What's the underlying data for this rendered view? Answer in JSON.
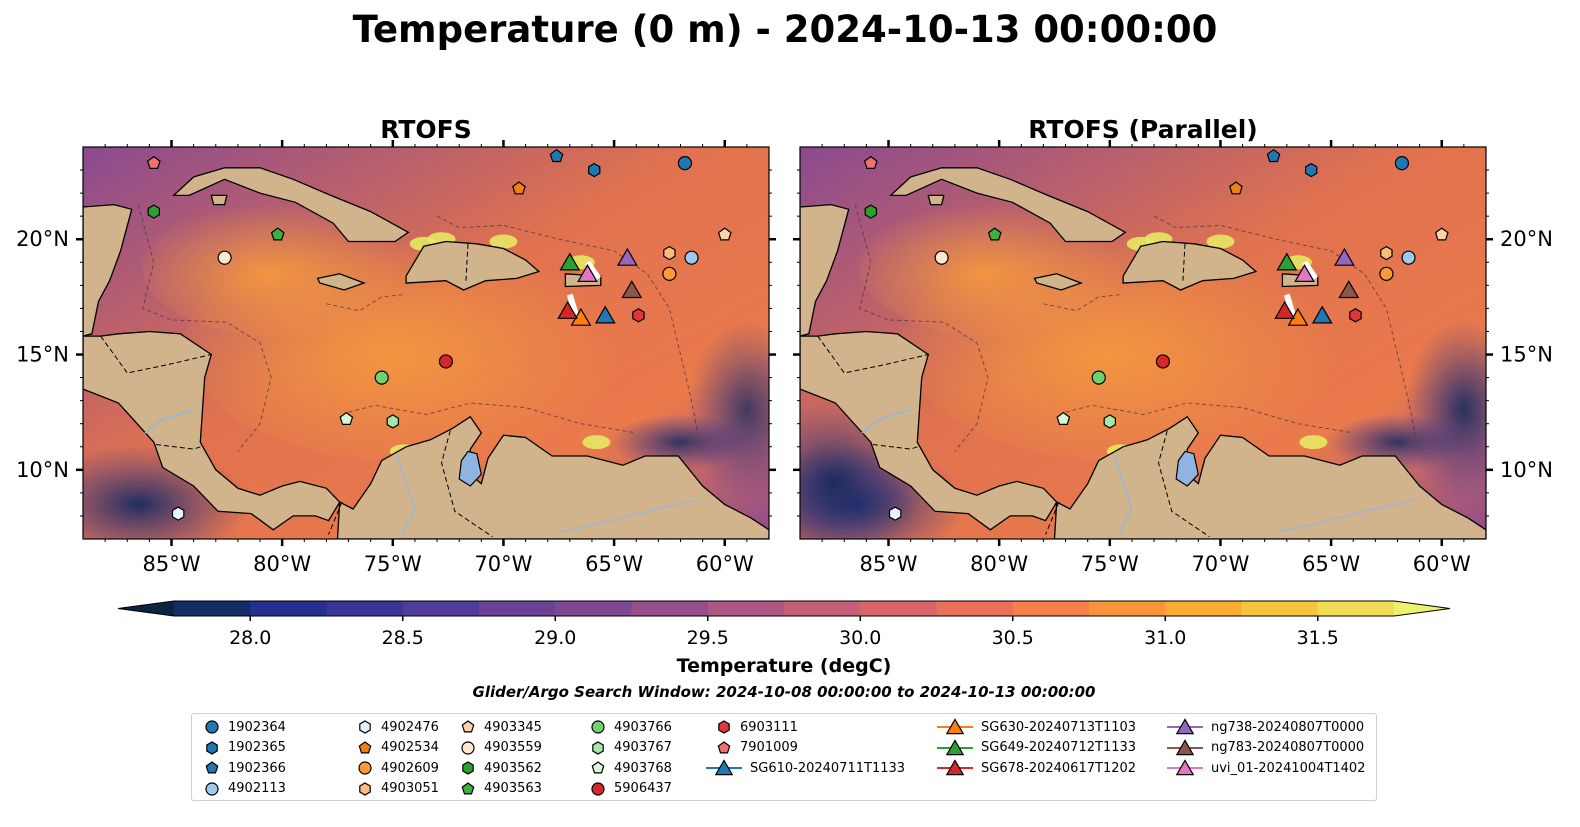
{
  "title": "Temperature (0 m) - 2024-10-13 00:00:00",
  "panels": [
    {
      "title": "RTOFS"
    },
    {
      "title": "RTOFS (Parallel)"
    }
  ],
  "colorbar": {
    "label": "Temperature (degC)",
    "ticks": [
      "28.0",
      "28.5",
      "29.0",
      "29.5",
      "30.0",
      "30.5",
      "31.0",
      "31.5"
    ],
    "colors": [
      "#0b2440",
      "#132c66",
      "#263090",
      "#3a3598",
      "#523c99",
      "#6a4396",
      "#7e4992",
      "#954f8c",
      "#ad5784",
      "#c45e79",
      "#d9656a",
      "#e9715a",
      "#f4804a",
      "#f8953b",
      "#f9ab33",
      "#f7c43d",
      "#f2dd57",
      "#ecf26b"
    ]
  },
  "search_window": "Glider/Argo Search Window: 2024-10-08 00:00:00 to 2024-10-13 00:00:00",
  "chart_data": {
    "type": "map",
    "variable": "Temperature (0 m)",
    "units": "degC",
    "color_range": [
      28.0,
      31.5
    ],
    "lon_range": [
      -89,
      -58
    ],
    "lat_range": [
      7,
      24
    ],
    "xticks": [
      {
        "value": -85,
        "label": "85°W"
      },
      {
        "value": -80,
        "label": "80°W"
      },
      {
        "value": -75,
        "label": "75°W"
      },
      {
        "value": -70,
        "label": "70°W"
      },
      {
        "value": -65,
        "label": "65°W"
      },
      {
        "value": -60,
        "label": "60°W"
      }
    ],
    "yticks": [
      {
        "value": 20,
        "label": "20°N"
      },
      {
        "value": 15,
        "label": "15°N"
      },
      {
        "value": 10,
        "label": "10°N"
      }
    ],
    "legend_position": "bottom",
    "platforms": [
      {
        "name": "1902364",
        "marker": "circle",
        "color": "#1f77b4",
        "lon": -61.8,
        "lat": 23.3
      },
      {
        "name": "1902365",
        "marker": "hexagon",
        "color": "#1f77b4",
        "lon": -65.9,
        "lat": 23.0
      },
      {
        "name": "1902366",
        "marker": "pentagon",
        "color": "#1f77b4",
        "lon": -67.6,
        "lat": 23.6
      },
      {
        "name": "4902113",
        "marker": "circle",
        "color": "#9ec9ed",
        "lon": -61.5,
        "lat": 19.2
      },
      {
        "name": "4902476",
        "marker": "hexagon",
        "color": "#e6f3fb",
        "lon": -84.7,
        "lat": 8.1
      },
      {
        "name": "4902534",
        "marker": "pentagon",
        "color": "#f28017",
        "lon": -69.3,
        "lat": 22.2
      },
      {
        "name": "4902609",
        "marker": "circle",
        "color": "#ff9933",
        "lon": -62.5,
        "lat": 18.5
      },
      {
        "name": "4903051",
        "marker": "hexagon",
        "color": "#ffbb78",
        "lon": -62.5,
        "lat": 19.4
      },
      {
        "name": "4903345",
        "marker": "pentagon",
        "color": "#ffd3a6",
        "lon": -60.0,
        "lat": 20.2
      },
      {
        "name": "4903559",
        "marker": "circle",
        "color": "#ffe7cf",
        "lon": -82.6,
        "lat": 19.2
      },
      {
        "name": "4903562",
        "marker": "hexagon",
        "color": "#2ca02c",
        "lon": -85.8,
        "lat": 21.2
      },
      {
        "name": "4903563",
        "marker": "pentagon",
        "color": "#3db03d",
        "lon": -80.2,
        "lat": 20.2
      },
      {
        "name": "4903766",
        "marker": "circle",
        "color": "#6fd26f",
        "lon": -75.5,
        "lat": 14.0
      },
      {
        "name": "4903767",
        "marker": "hexagon",
        "color": "#a6e7a6",
        "lon": -75.0,
        "lat": 12.1
      },
      {
        "name": "4903768",
        "marker": "pentagon",
        "color": "#d8f6d8",
        "lon": -77.1,
        "lat": 12.2
      },
      {
        "name": "5906437",
        "marker": "circle",
        "color": "#d62728",
        "lon": -72.6,
        "lat": 14.7
      },
      {
        "name": "6903111",
        "marker": "hexagon",
        "color": "#e0383a",
        "lon": -63.9,
        "lat": 16.7
      },
      {
        "name": "7901009",
        "marker": "pentagon",
        "color": "#f07070",
        "lon": -85.8,
        "lat": 23.3
      },
      {
        "name": "SG610-20240711T1133",
        "marker": "triangle",
        "color": "#1f77b4",
        "lon": -65.4,
        "lat": 16.7,
        "line": true
      },
      {
        "name": "SG630-20240713T1103",
        "marker": "triangle",
        "color": "#ff7f0e",
        "lon": -66.5,
        "lat": 16.6,
        "line": true
      },
      {
        "name": "SG649-20240712T1133",
        "marker": "triangle",
        "color": "#2ca02c",
        "lon": -67.0,
        "lat": 19.0,
        "line": true
      },
      {
        "name": "SG678-20240617T1202",
        "marker": "triangle",
        "color": "#d62728",
        "lon": -67.1,
        "lat": 16.9,
        "line": true
      },
      {
        "name": "ng738-20240807T0000",
        "marker": "triangle",
        "color": "#9467bd",
        "lon": -64.4,
        "lat": 19.2,
        "line": true
      },
      {
        "name": "ng783-20240807T0000",
        "marker": "triangle",
        "color": "#8c564b",
        "lon": -64.2,
        "lat": 17.8,
        "line": true
      },
      {
        "name": "uvi_01-20241004T1402",
        "marker": "triangle",
        "color": "#e377c2",
        "lon": -66.2,
        "lat": 18.5,
        "line": true
      }
    ]
  }
}
